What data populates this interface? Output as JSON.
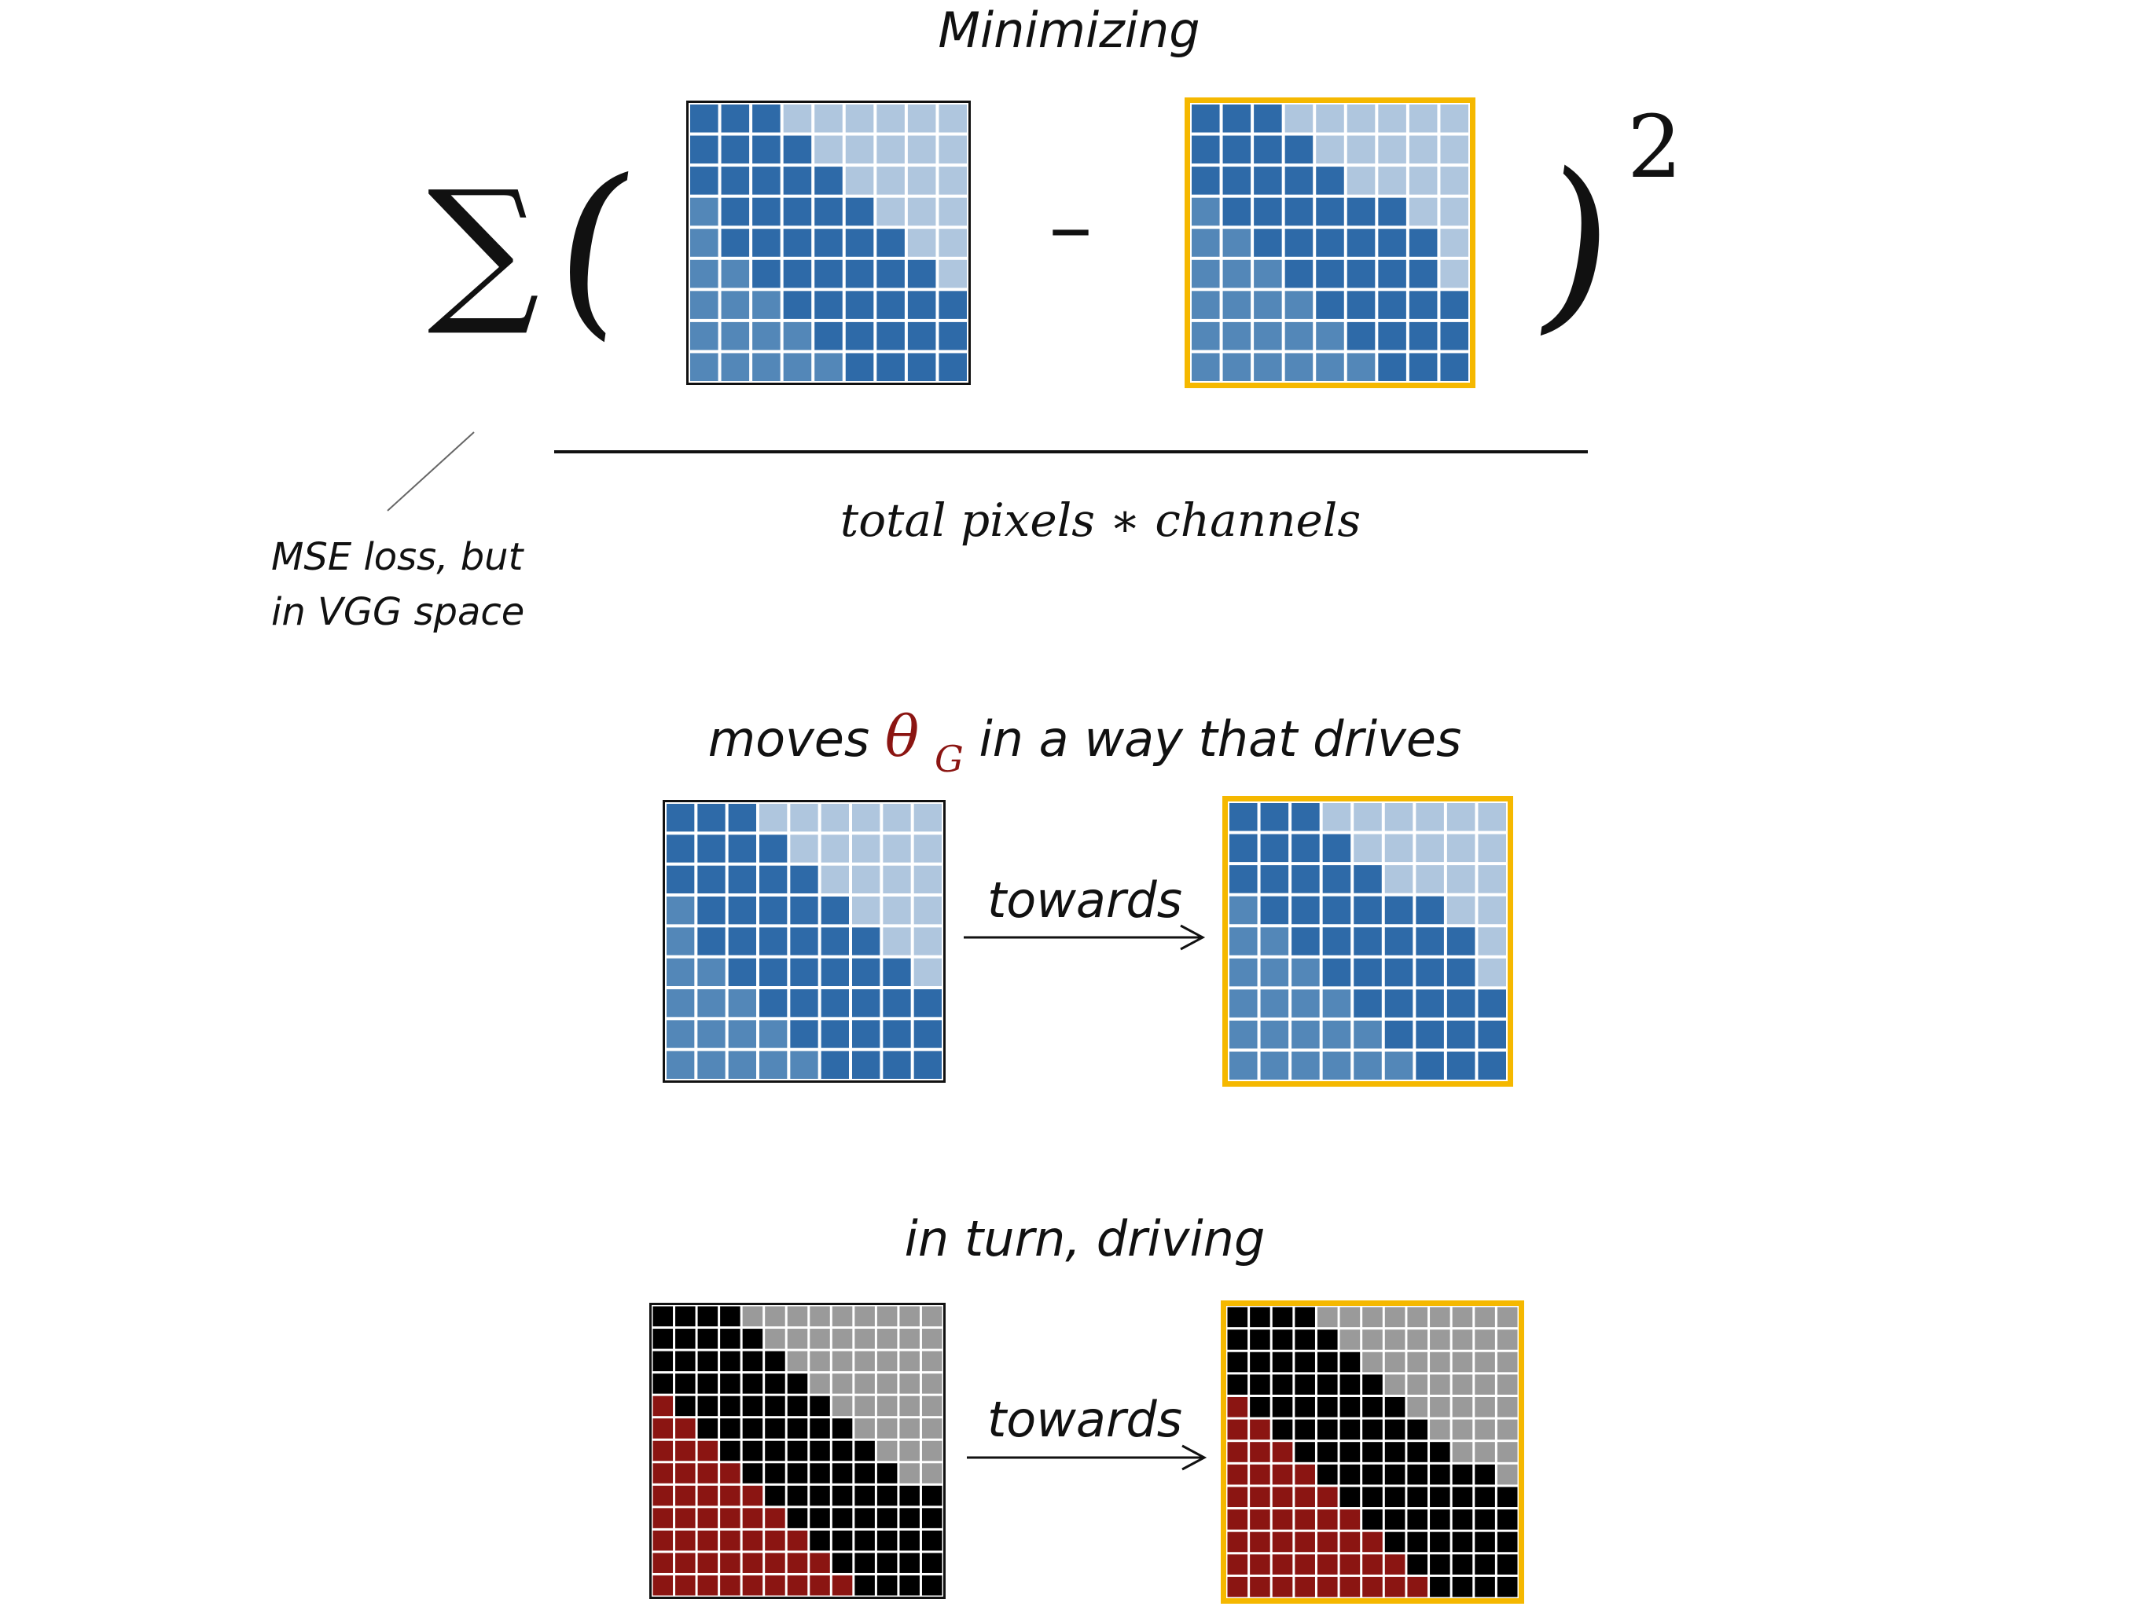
{
  "colors": {
    "dark_blue": "#2e6aa8",
    "mid_blue": "#5387b8",
    "light_blue": "#afc6de",
    "black": "#000000",
    "gray": "#9a9a9a",
    "red": "#8b1512",
    "target_border": "#f5b800",
    "theta_red": "#8b1512"
  },
  "formula": {
    "title": "Minimizing",
    "sum_symbol": "∑",
    "open_paren": "(",
    "minus": "–",
    "close_paren": ")",
    "exponent": "2",
    "denominator": "total pixels ∗ channels"
  },
  "annotation": {
    "line1": "MSE loss, but",
    "line2": "in VGG space"
  },
  "caption_moves": {
    "prefix": "moves ",
    "theta": "θ",
    "subscript": "G",
    "suffix": " in a way that drives"
  },
  "towards_label_1": "towards",
  "caption_turn": "in turn, driving",
  "towards_label_2": "towards",
  "grids": {
    "feature_generated": {
      "rows": [
        "DDDLLLLLL",
        "DDDDLLLLL",
        "DDDDDLLLL",
        "MDDDDDLLL",
        "MDDDDDDLL",
        "MMDDDDDDL",
        "MMMDDDDDD",
        "MMMMDDDDD",
        "MMMMMDDDD"
      ]
    },
    "feature_target": {
      "rows": [
        "DDDLLLLLL",
        "DDDDLLLLL",
        "DDDDDLLLL",
        "MDDDDDDLL",
        "MMDDDDDDL",
        "MMMDDDDDL",
        "MMMMDDDDD",
        "MMMMMDDDD",
        "MMMMMMDDD"
      ]
    },
    "image_generated": {
      "rows": [
        "KKKKGGGGGGGGG",
        "KKKKKGGGGGGGG",
        "KKKKKKGGGGGGG",
        "KKKKKKKGGGGGG",
        "RKKKKKKKGGGGG",
        "RRKKKKKKKGGGG",
        "RRRKKKKKKKGGG",
        "RRRRKKKKKKKGG",
        "RRRRRKKKKKKKK",
        "RRRRRRKKKKKKK",
        "RRRRRRRKKKKKK",
        "RRRRRRRRKKKKK",
        "RRRRRRRRRKKKK"
      ]
    },
    "image_target": {
      "rows": [
        "KKKKGGGGGGGGG",
        "KKKKKGGGGGGGG",
        "KKKKKKGGGGGGG",
        "KKKKKKKGGGGGG",
        "RKKKKKKKGGGGG",
        "RRKKKKKKKGGGG",
        "RRRKKKKKKKGGG",
        "RRRRKKKKKKKKG",
        "RRRRRKKKKKKKK",
        "RRRRRRKKKKKKK",
        "RRRRRRRKKKKKK",
        "RRRRRRRRKKKKK",
        "RRRRRRRRRKKKK"
      ]
    }
  }
}
